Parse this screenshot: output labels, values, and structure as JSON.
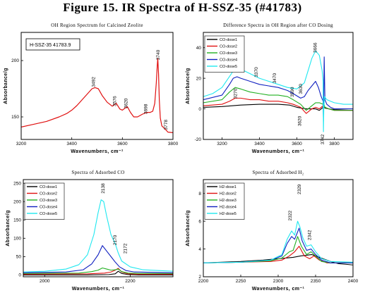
{
  "figure_title": "Figure 15. IR Spectra of H-SSZ-35 (#41783)",
  "colors": {
    "black": "#000000",
    "red": "#e01010",
    "green": "#22b022",
    "blue": "#1020c0",
    "cyan": "#20e8f0",
    "frame": "#000000"
  },
  "chart_data": [
    {
      "id": "p1",
      "type": "line",
      "title": "OH Region Spectrum for Calcined Zeolite",
      "xlabel": "Wavenumbers, cm⁻¹",
      "ylabel": "Absorbance/g",
      "xlim": [
        3200,
        3800
      ],
      "ylim": [
        130,
        225
      ],
      "xticks": [
        3200,
        3400,
        3600,
        3800
      ],
      "yticks": [
        150,
        200
      ],
      "sample_label": "H-SSZ-35 41783.9",
      "series": [
        {
          "name": "",
          "color": "#e01010",
          "x": [
            3200,
            3250,
            3300,
            3350,
            3380,
            3400,
            3420,
            3440,
            3460,
            3480,
            3492,
            3505,
            3520,
            3540,
            3560,
            3576,
            3590,
            3600,
            3612,
            3620,
            3632,
            3645,
            3660,
            3680,
            3698,
            3710,
            3720,
            3728,
            3734,
            3738,
            3740,
            3743,
            3746,
            3750,
            3756,
            3765,
            3772,
            3780,
            3800
          ],
          "y": [
            141,
            143.5,
            146,
            150,
            153,
            156,
            160,
            165,
            170,
            175,
            176,
            175,
            169,
            163,
            159.5,
            162,
            157,
            156,
            158,
            159,
            154,
            150,
            150,
            152.5,
            154,
            154,
            155,
            162,
            180,
            196,
            202,
            188,
            165,
            149,
            142,
            140,
            138.5,
            136.5,
            136
          ]
        }
      ],
      "annotations": [
        {
          "text": "3492",
          "x": 3492,
          "y": 181
        },
        {
          "text": "3576",
          "x": 3576,
          "y": 164
        },
        {
          "text": "3620",
          "x": 3620,
          "y": 162
        },
        {
          "text": "3698",
          "x": 3698,
          "y": 157
        },
        {
          "text": "3740",
          "x": 3747,
          "y": 205
        },
        {
          "text": "3778",
          "x": 3778,
          "y": 143
        }
      ]
    },
    {
      "id": "p2",
      "type": "line",
      "title": "Difference Spectra in OH Region after CO Dosing",
      "xlabel": "Wavenumbers, cm⁻¹",
      "ylabel": "Absorbance/g",
      "xlim": [
        3100,
        3900
      ],
      "ylim": [
        -20,
        50
      ],
      "xticks": [
        3200,
        3400,
        3600,
        3800
      ],
      "yticks": [
        -20,
        0,
        20,
        40
      ],
      "legend": [
        "CO-dose1",
        "CO-dose2",
        "CO-dose3",
        "CO-dose4",
        "CO-dose5"
      ],
      "series": [
        {
          "name": "CO-dose1",
          "color": "#000000",
          "x": [
            3100,
            3200,
            3300,
            3400,
            3500,
            3560,
            3600,
            3650,
            3700,
            3720,
            3740,
            3745,
            3750,
            3770,
            3800,
            3900
          ],
          "y": [
            1,
            1.5,
            2.5,
            3,
            3,
            2.5,
            1,
            0,
            0,
            -1,
            1,
            1.5,
            0.5,
            0,
            -0.5,
            -1
          ]
        },
        {
          "name": "CO-dose2",
          "color": "#e01010",
          "x": [
            3100,
            3200,
            3240,
            3270,
            3300,
            3350,
            3400,
            3450,
            3500,
            3550,
            3580,
            3620,
            3650,
            3680,
            3700,
            3720,
            3740,
            3745,
            3750,
            3770,
            3800,
            3900
          ],
          "y": [
            2,
            3,
            5,
            7,
            7,
            6,
            6,
            5,
            5,
            4,
            3,
            1,
            -3,
            0,
            1,
            0,
            2,
            2,
            1,
            0,
            -1,
            -1
          ]
        },
        {
          "name": "CO-dose3",
          "color": "#22b022",
          "x": [
            3100,
            3200,
            3240,
            3270,
            3300,
            3350,
            3400,
            3450,
            3500,
            3550,
            3580,
            3620,
            3650,
            3680,
            3700,
            3720,
            3740,
            3745,
            3750,
            3770,
            3800,
            3900
          ],
          "y": [
            4,
            6,
            11,
            14,
            13,
            11,
            10,
            9,
            9,
            8,
            6,
            3,
            -1,
            2,
            4,
            4,
            3,
            3,
            1,
            0,
            -1,
            -1
          ]
        },
        {
          "name": "CO-dose4",
          "color": "#1020c0",
          "x": [
            3100,
            3200,
            3240,
            3260,
            3280,
            3300,
            3350,
            3400,
            3450,
            3500,
            3550,
            3580,
            3620,
            3640,
            3660,
            3680,
            3700,
            3715,
            3730,
            3740,
            3742,
            3746,
            3750,
            3760,
            3780,
            3800,
            3900
          ],
          "y": [
            6,
            9,
            16,
            20,
            21,
            20,
            18,
            16,
            15,
            14,
            12,
            10,
            7,
            8,
            12,
            15,
            18,
            14,
            8,
            5,
            -8,
            34,
            6,
            3,
            1,
            0,
            0
          ]
        },
        {
          "name": "CO-dose5",
          "color": "#20e8f0",
          "x": [
            3100,
            3150,
            3200,
            3250,
            3270,
            3300,
            3350,
            3400,
            3450,
            3500,
            3550,
            3600,
            3640,
            3660,
            3680,
            3700,
            3720,
            3735,
            3740,
            3742,
            3744,
            3748,
            3760,
            3780,
            3800,
            3850,
            3900
          ],
          "y": [
            8,
            10,
            14,
            23,
            27,
            26,
            23,
            20,
            18,
            16,
            14,
            13,
            17,
            25,
            33,
            38,
            35,
            25,
            18,
            -15,
            0,
            8,
            6,
            5,
            4,
            3,
            3
          ]
        }
      ],
      "annotations": [
        {
          "text": "3256",
          "x": 3258,
          "y": 30
        },
        {
          "text": "3270",
          "x": 3280,
          "y": 10
        },
        {
          "text": "3370",
          "x": 3390,
          "y": 24
        },
        {
          "text": "3470",
          "x": 3488,
          "y": 20
        },
        {
          "text": "3590",
          "x": 3584,
          "y": 11
        },
        {
          "text": "3630",
          "x": 3628,
          "y": 13
        },
        {
          "text": "3620",
          "x": 3622,
          "y": -8
        },
        {
          "text": "3666",
          "x": 3706,
          "y": 40
        },
        {
          "text": "3742",
          "x": 3746,
          "y": -20
        }
      ]
    },
    {
      "id": "p3",
      "type": "line",
      "title": "Spectra of Adsorbed CO",
      "xlabel": "Wavenumbers, cm⁻¹",
      "ylabel": "Absorbance/g",
      "xlim": [
        1950,
        2300
      ],
      "ylim": [
        -5,
        260
      ],
      "xticks": [
        2000,
        2200
      ],
      "yticks": [
        0,
        50,
        100,
        150,
        200,
        250
      ],
      "legend": [
        "CO-dose1",
        "CO-dose2",
        "CO-dose3",
        "CO-dose4",
        "CO-dose5"
      ],
      "series": [
        {
          "name": "CO-dose1",
          "color": "#000000",
          "x": [
            1950,
            2100,
            2150,
            2165,
            2172,
            2180,
            2195,
            2220,
            2300
          ],
          "y": [
            0,
            0,
            1,
            3,
            10,
            4,
            1,
            0,
            0
          ]
        },
        {
          "name": "CO-dose2",
          "color": "#e01010",
          "x": [
            1950,
            2100,
            2140,
            2155,
            2165,
            2172,
            2180,
            2195,
            2220,
            2300
          ],
          "y": [
            2,
            3,
            5,
            8,
            13,
            18,
            8,
            3,
            2,
            2
          ]
        },
        {
          "name": "CO-dose3",
          "color": "#22b022",
          "x": [
            1950,
            2080,
            2110,
            2125,
            2135,
            2145,
            2155,
            2165,
            2172,
            2180,
            2195,
            2220,
            2300
          ],
          "y": [
            4,
            5,
            9,
            13,
            19,
            16,
            13,
            14,
            16,
            9,
            5,
            4,
            4
          ]
        },
        {
          "name": "CO-dose4",
          "color": "#1020c0",
          "x": [
            1950,
            2050,
            2090,
            2110,
            2125,
            2135,
            2145,
            2155,
            2165,
            2175,
            2190,
            2210,
            2300
          ],
          "y": [
            6,
            8,
            14,
            30,
            55,
            80,
            65,
            50,
            35,
            22,
            12,
            8,
            6
          ]
        },
        {
          "name": "CO-dose5",
          "color": "#20e8f0",
          "x": [
            1950,
            2000,
            2050,
            2080,
            2100,
            2115,
            2125,
            2132,
            2138,
            2145,
            2155,
            2165,
            2172,
            2180,
            2200,
            2230,
            2300
          ],
          "y": [
            8,
            10,
            16,
            28,
            55,
            110,
            170,
            205,
            200,
            160,
            110,
            85,
            60,
            38,
            22,
            14,
            10
          ]
        }
      ],
      "annotations": [
        {
          "text": "2138",
          "x": 2140,
          "y": 236
        },
        {
          "text": "2170",
          "x": 2168,
          "y": 95
        },
        {
          "text": "2172",
          "x": 2192,
          "y": 72
        }
      ]
    },
    {
      "id": "p4",
      "type": "line",
      "title": "Spectra of Adsorbed H₂",
      "xlabel": "Wavenumbers, cm⁻¹",
      "ylabel": "Absorbance/g",
      "xlim": [
        2200,
        2400
      ],
      "ylim": [
        2,
        9
      ],
      "xticks": [
        2200,
        2250,
        2300,
        2350,
        2400
      ],
      "yticks": [
        2,
        4,
        6,
        8
      ],
      "legend": [
        "H2-dose1",
        "H2-dose2",
        "H2-dose3",
        "H2-dose4",
        "H2-dose5"
      ],
      "series": [
        {
          "name": "H2-dose1",
          "color": "#000000",
          "x": [
            2200,
            2250,
            2280,
            2300,
            2310,
            2320,
            2330,
            2338,
            2345,
            2350,
            2360,
            2370,
            2380,
            2390,
            2400
          ],
          "y": [
            3.0,
            3.1,
            3.2,
            3.3,
            3.35,
            3.4,
            3.5,
            3.55,
            3.6,
            3.5,
            3.3,
            3.1,
            2.95,
            2.9,
            2.85
          ]
        },
        {
          "name": "H2-dose2",
          "color": "#e01010",
          "x": [
            2200,
            2250,
            2290,
            2305,
            2315,
            2322,
            2328,
            2335,
            2342,
            2348,
            2355,
            2365,
            2380,
            2400
          ],
          "y": [
            3.0,
            3.05,
            3.1,
            3.2,
            3.5,
            3.8,
            4.2,
            3.5,
            3.3,
            3.5,
            3.2,
            3.0,
            3.0,
            3.0
          ]
        },
        {
          "name": "H2-dose3",
          "color": "#22b022",
          "x": [
            2200,
            2250,
            2290,
            2305,
            2315,
            2320,
            2326,
            2331,
            2338,
            2344,
            2350,
            2358,
            2370,
            2400
          ],
          "y": [
            3.0,
            3.05,
            3.15,
            3.35,
            3.8,
            3.9,
            4.9,
            4.2,
            3.6,
            3.8,
            3.5,
            3.1,
            3.0,
            3.0
          ]
        },
        {
          "name": "H2-dose4",
          "color": "#1020c0",
          "x": [
            2200,
            2250,
            2290,
            2305,
            2312,
            2318,
            2322,
            2328,
            2332,
            2338,
            2344,
            2350,
            2358,
            2370,
            2400
          ],
          "y": [
            3.0,
            3.05,
            3.2,
            3.5,
            4.4,
            4.9,
            4.7,
            5.5,
            4.6,
            3.9,
            4.0,
            3.6,
            3.2,
            3.0,
            3.0
          ]
        },
        {
          "name": "H2-dose5",
          "color": "#20e8f0",
          "x": [
            2200,
            2250,
            2290,
            2305,
            2312,
            2318,
            2322,
            2326,
            2329,
            2333,
            2338,
            2344,
            2350,
            2358,
            2370,
            2400
          ],
          "y": [
            3.0,
            3.05,
            3.2,
            3.6,
            4.7,
            5.3,
            5.0,
            6.0,
            5.6,
            4.8,
            4.2,
            4.3,
            3.8,
            3.3,
            3.1,
            3.05
          ]
        }
      ],
      "annotations": [
        {
          "text": "2322",
          "x": 2318,
          "y": 6.4
        },
        {
          "text": "2329",
          "x": 2330,
          "y": 8.3
        },
        {
          "text": "2342",
          "x": 2344,
          "y": 5.0
        }
      ]
    }
  ]
}
